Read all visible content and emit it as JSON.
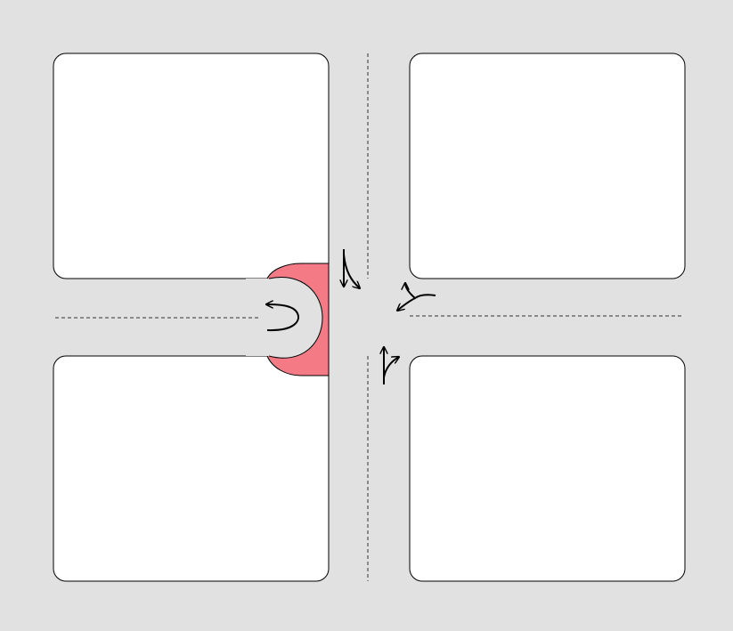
{
  "diagram": {
    "description_kind": "road intersection layout",
    "colors": {
      "road": "#e1e1e1",
      "block_fill": "#ffffff",
      "block_stroke": "#000000",
      "lane_marking": "#333333",
      "turnaround_highlight": "#f47a86",
      "arrow": "#000000"
    },
    "blocks": [
      {
        "id": "top-left"
      },
      {
        "id": "top-right"
      },
      {
        "id": "bottom-left"
      },
      {
        "id": "bottom-right"
      }
    ],
    "lane_markings": [
      {
        "id": "west-road-centerline",
        "style": "dashed"
      },
      {
        "id": "east-road-centerline",
        "style": "dashed"
      },
      {
        "id": "north-road-centerline",
        "style": "dashed"
      },
      {
        "id": "south-road-centerline",
        "style": "dashed"
      }
    ],
    "movement_arrows": [
      {
        "id": "west-road-u-turn",
        "icon": "u-turn-arrow-icon"
      },
      {
        "id": "southbound-straight-or-left",
        "icon": "straight-left-arrow-icon"
      },
      {
        "id": "westbound-left-or-right",
        "icon": "split-arrow-icon"
      },
      {
        "id": "northbound-straight-or-right",
        "icon": "straight-right-arrow-icon"
      }
    ],
    "turnaround": {
      "shape": "semicircular bulb",
      "highlight": true
    }
  }
}
